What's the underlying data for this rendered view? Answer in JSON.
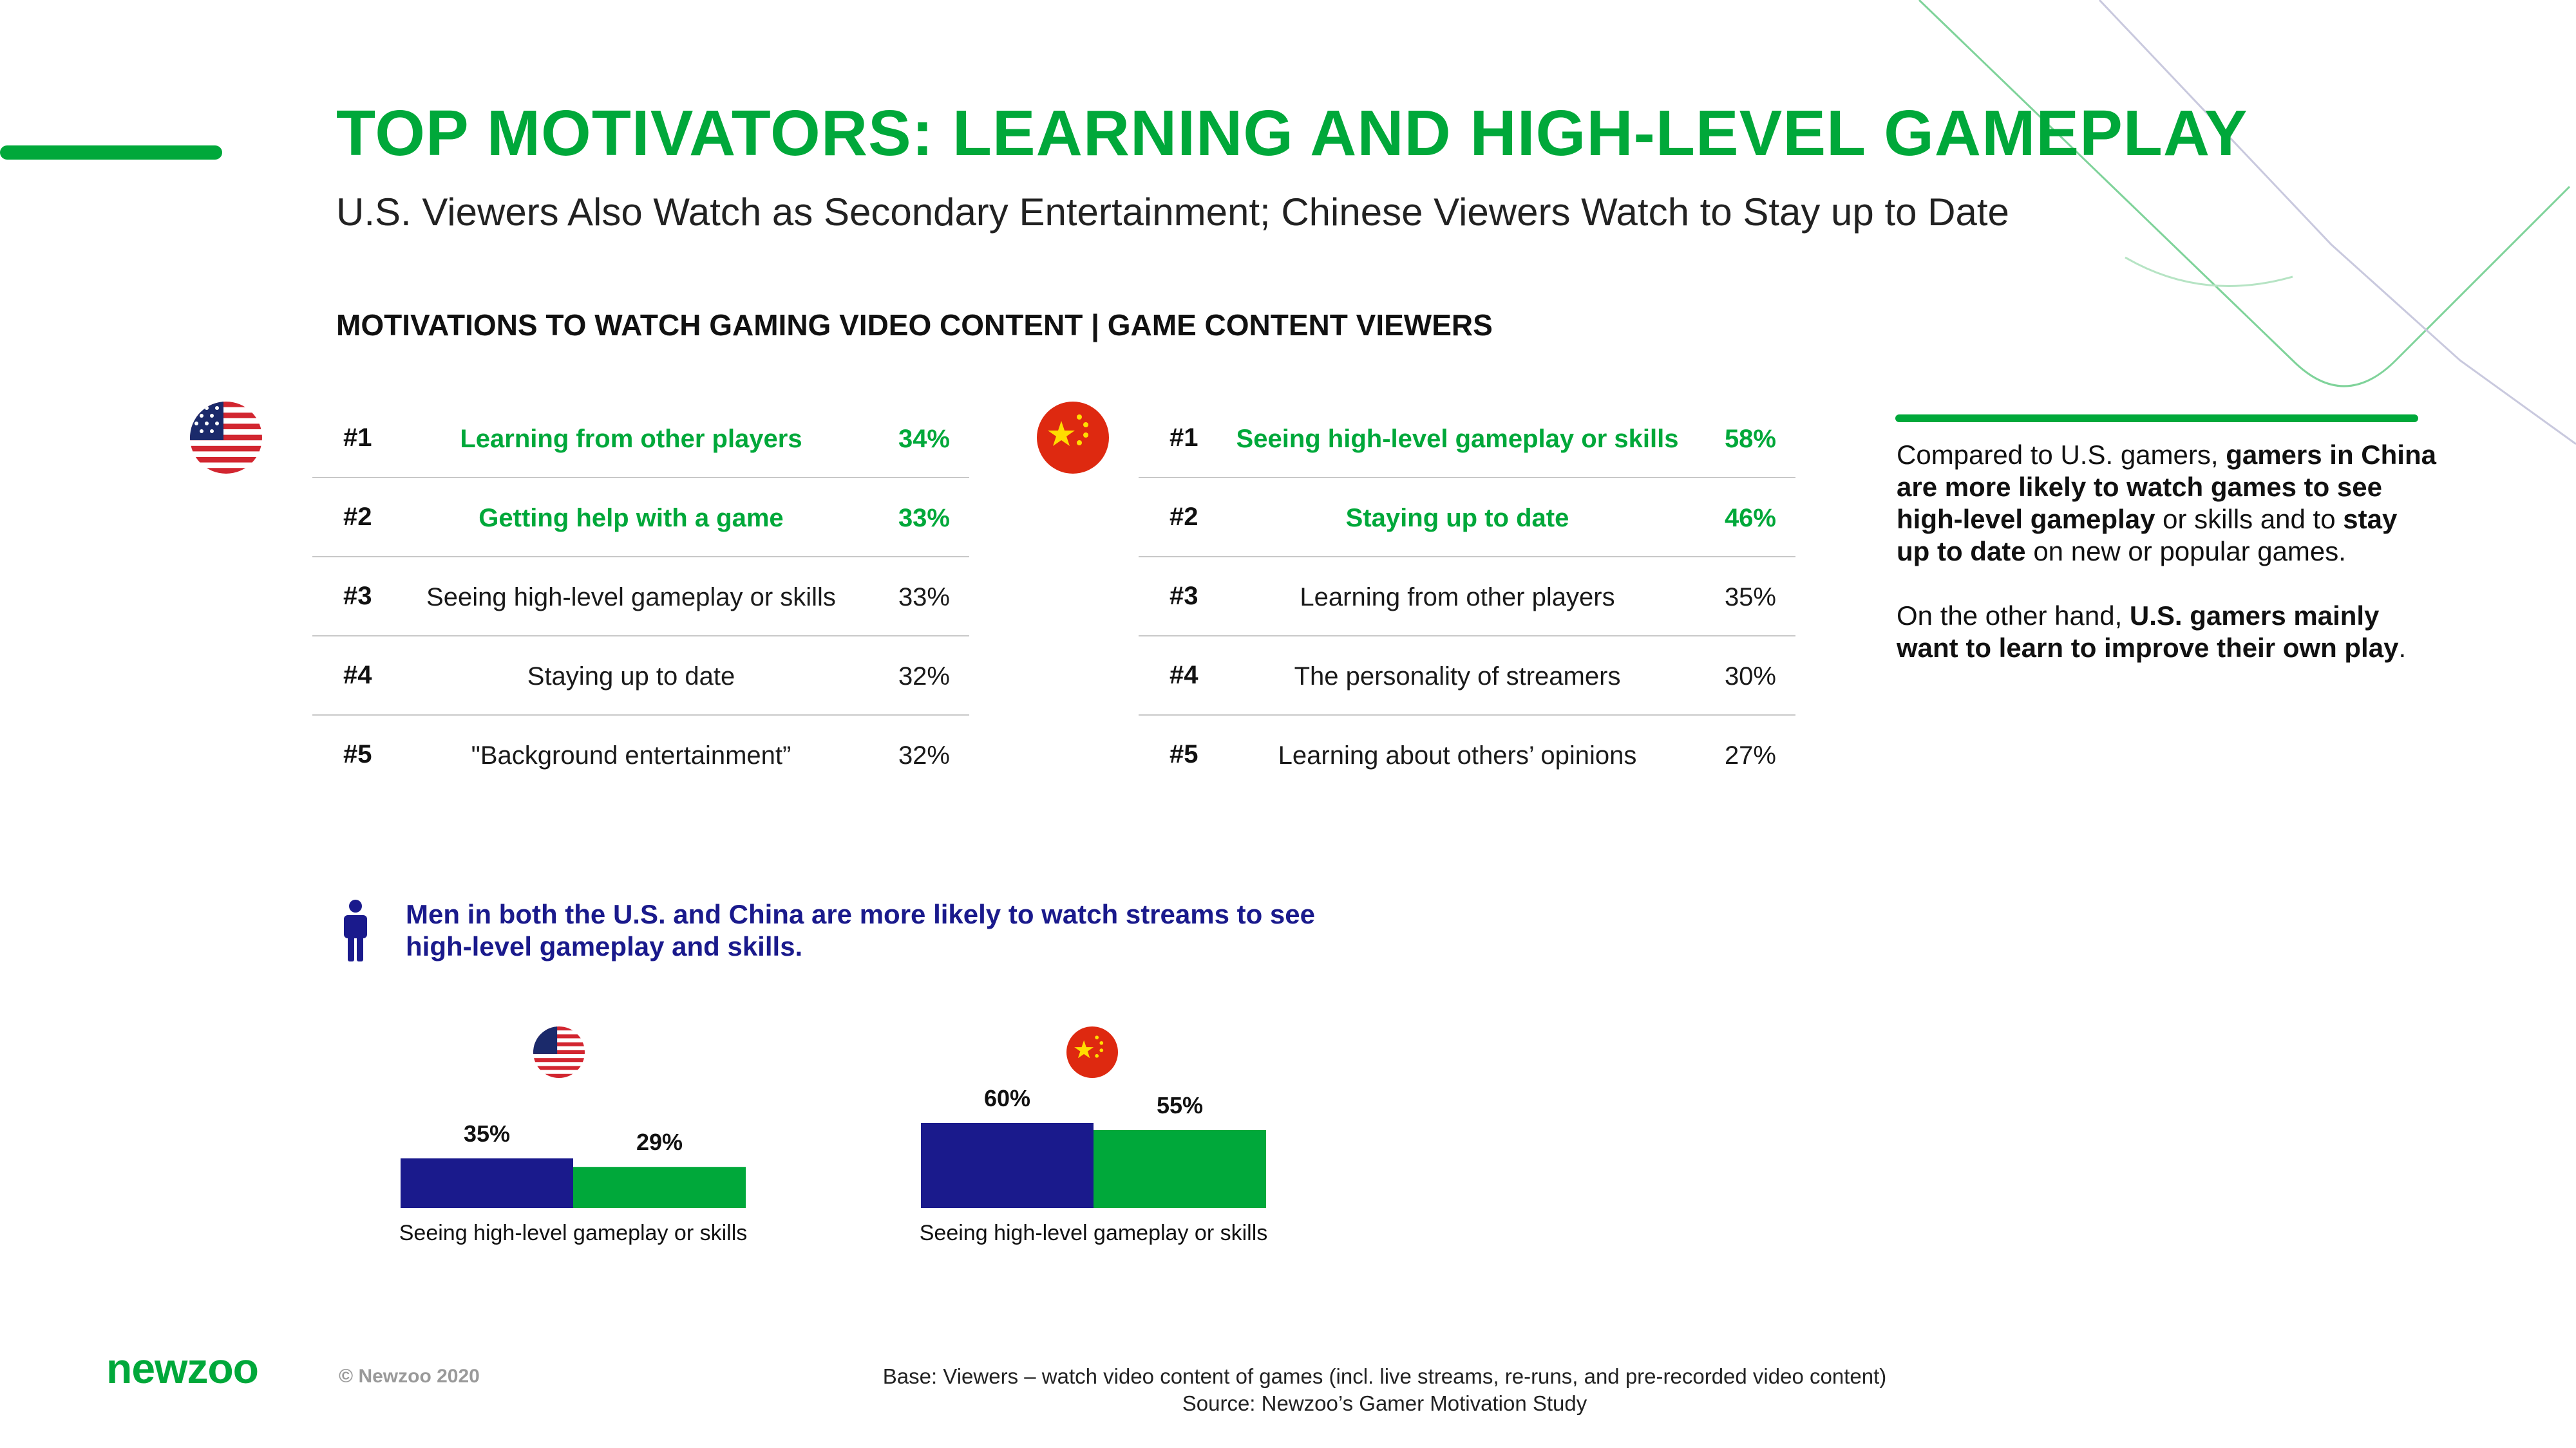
{
  "title": "TOP MOTIVATORS: LEARNING AND HIGH-LEVEL GAMEPLAY",
  "subtitle": "U.S. Viewers Also Watch as Secondary Entertainment; Chinese Viewers Watch to Stay up to Date",
  "section_title": "MOTIVATIONS TO WATCH GAMING VIDEO CONTENT | GAME CONTENT VIEWERS",
  "colors": {
    "green": "#00a83a",
    "navy": "#1a1a8c"
  },
  "us_ranking": [
    {
      "rank": "#1",
      "label": "Learning from other players",
      "pct": "34%",
      "highlight": true
    },
    {
      "rank": "#2",
      "label": "Getting help with a game",
      "pct": "33%",
      "highlight": true
    },
    {
      "rank": "#3",
      "label": "Seeing high-level gameplay or skills",
      "pct": "33%",
      "highlight": false
    },
    {
      "rank": "#4",
      "label": "Staying up to date",
      "pct": "32%",
      "highlight": false
    },
    {
      "rank": "#5",
      "label": "\"Background entertainment”",
      "pct": "32%",
      "highlight": false
    }
  ],
  "china_ranking": [
    {
      "rank": "#1",
      "label": "Seeing high-level gameplay or skills",
      "pct": "58%",
      "highlight": true
    },
    {
      "rank": "#2",
      "label": "Staying up to date",
      "pct": "46%",
      "highlight": true
    },
    {
      "rank": "#3",
      "label": "Learning from other players",
      "pct": "35%",
      "highlight": false
    },
    {
      "rank": "#4",
      "label": "The personality of streamers",
      "pct": "30%",
      "highlight": false
    },
    {
      "rank": "#5",
      "label": "Learning about others’ opinions",
      "pct": "27%",
      "highlight": false
    }
  ],
  "insight": {
    "p1_a": "Compared to U.S. gamers, ",
    "p1_b": "gamers in China are more likely to watch games to see high-level gameplay",
    "p1_c": " or skills and to ",
    "p1_d": "stay up to date",
    "p1_e": " on new or popular games.",
    "p2_a": "On the other hand, ",
    "p2_b": "U.S. gamers mainly want to learn to improve their own play",
    "p2_c": "."
  },
  "men_note": "Men in both the U.S. and China are more likely to watch streams to see high-level gameplay and skills.",
  "flags": [
    "us-flag-icon",
    "china-flag-icon"
  ],
  "chart_data": [
    {
      "type": "bar",
      "group": "U.S.",
      "categories": [
        "Seeing high-level gameplay or skills"
      ],
      "series": [
        {
          "values": [
            35
          ],
          "color": "#1a1a8c"
        },
        {
          "values": [
            29
          ],
          "color": "#00a83a"
        }
      ],
      "data_labels": [
        "35%",
        "29%"
      ]
    },
    {
      "type": "bar",
      "group": "China",
      "categories": [
        "Seeing high-level gameplay or skills"
      ],
      "series": [
        {
          "values": [
            60
          ],
          "color": "#1a1a8c"
        },
        {
          "values": [
            55
          ],
          "color": "#00a83a"
        }
      ],
      "data_labels": [
        "60%",
        "55%"
      ]
    }
  ],
  "footer": {
    "logo": "newzoo",
    "copyright": "© Newzoo 2020",
    "base": "Base: Viewers – watch video content of games (incl. live streams, re-runs, and pre-recorded video content)",
    "source": "Source: Newzoo’s Gamer Motivation Study"
  }
}
